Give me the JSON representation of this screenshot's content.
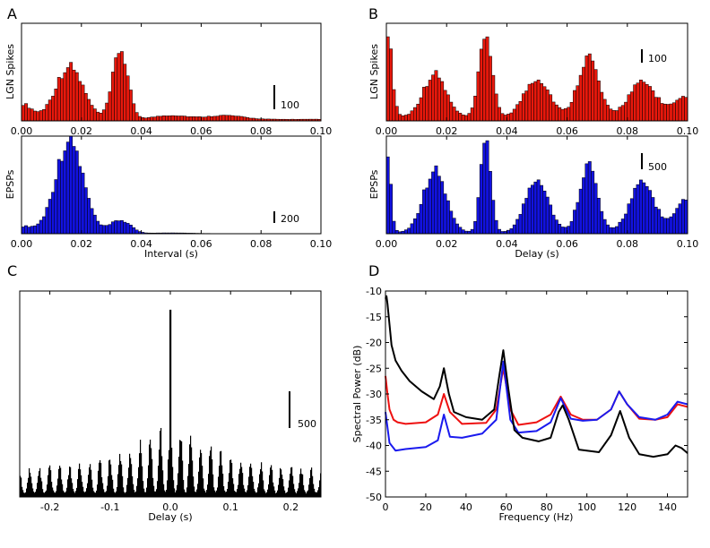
{
  "colors": {
    "red": "#e8180c",
    "blue": "#1212e0",
    "black": "#000000",
    "spectrum_red": "#ee1111",
    "spectrum_blue": "#1a1aee"
  },
  "panel_labels": [
    "A",
    "B",
    "C",
    "D"
  ],
  "chart_data": [
    {
      "id": "A1",
      "type": "bar",
      "panel": "A",
      "ylabel": "LGN Spikes",
      "xlabel": "",
      "xlim": [
        0,
        0.1
      ],
      "ylim": [
        0,
        500
      ],
      "xticks": [
        "0.00",
        "0.02",
        "0.04",
        "0.06",
        "0.08",
        "0.10"
      ],
      "scalebar": {
        "value": 100,
        "label": "100"
      },
      "peaks": [
        [
          0.0,
          8,
          80
        ],
        [
          0.016,
          11,
          270
        ],
        [
          0.033,
          6,
          360
        ],
        [
          0.05,
          14,
          20
        ],
        [
          0.068,
          14,
          20
        ]
      ],
      "baseline": 8
    },
    {
      "id": "A2",
      "type": "bar",
      "panel": "A",
      "ylabel": "EPSPs",
      "xlabel": "Interval (s)",
      "xlim": [
        0,
        0.1
      ],
      "ylim": [
        0,
        1100
      ],
      "xticks": [
        "0.00",
        "0.02",
        "0.04",
        "0.06",
        "0.08",
        "0.10"
      ],
      "scalebar": {
        "value": 200,
        "label": "200"
      },
      "peaks": [
        [
          0.0,
          10,
          80
        ],
        [
          0.016,
          11,
          1050
        ],
        [
          0.033,
          8,
          150
        ],
        [
          0.05,
          14,
          8
        ]
      ],
      "baseline": 2
    },
    {
      "id": "B1",
      "type": "bar",
      "panel": "B",
      "ylabel": "LGN Spikes",
      "xlabel": "",
      "xlim": [
        0,
        0.1
      ],
      "ylim": [
        0,
        500
      ],
      "xticks": [
        "0.00",
        "0.02",
        "0.04",
        "0.06",
        "0.08",
        "0.10"
      ],
      "scalebar": {
        "value": 100,
        "label": "100"
      },
      "peaks": [
        [
          0.0,
          4,
          480
        ],
        [
          0.016,
          9,
          220
        ],
        [
          0.033,
          5,
          430
        ],
        [
          0.05,
          10,
          200
        ],
        [
          0.067,
          8,
          310
        ],
        [
          0.085,
          11,
          175
        ],
        [
          0.1,
          10,
          100
        ]
      ],
      "baseline": 20
    },
    {
      "id": "B2",
      "type": "bar",
      "panel": "B",
      "ylabel": "EPSPs",
      "xlabel": "Delay (s)",
      "xlim": [
        0,
        0.1
      ],
      "ylim": [
        0,
        3000
      ],
      "xticks": [
        "0.00",
        "0.02",
        "0.04",
        "0.06",
        "0.08",
        "0.10"
      ],
      "scalebar": {
        "value": 500,
        "label": "500"
      },
      "peaks": [
        [
          0.0,
          3,
          2800
        ],
        [
          0.016,
          9,
          1900
        ],
        [
          0.033,
          4,
          3000
        ],
        [
          0.05,
          9,
          1700
        ],
        [
          0.067,
          7,
          2100
        ],
        [
          0.085,
          10,
          1500
        ],
        [
          0.1,
          9,
          1000
        ]
      ],
      "baseline": 40
    },
    {
      "id": "C",
      "type": "bar",
      "panel": "C",
      "xlabel": "Delay (s)",
      "ylabel": "",
      "xlim": [
        -0.25,
        0.25
      ],
      "ylim": [
        0,
        4400
      ],
      "xticks": [
        "-0.2",
        "-0.1",
        "0.0",
        "0.1",
        "0.2"
      ],
      "scalebar": {
        "value": 500,
        "label": "500"
      },
      "period": 0.0167,
      "center_peak": 4000,
      "side_peak": 1500,
      "min_peak": 450,
      "floor": 80
    },
    {
      "id": "D",
      "type": "line",
      "panel": "D",
      "xlabel": "Frequency (Hz)",
      "ylabel": "Spectral Power (dB)",
      "xlim": [
        0,
        150
      ],
      "ylim": [
        -50,
        -10
      ],
      "xticks": [
        "0",
        "20",
        "40",
        "60",
        "80",
        "100",
        "120",
        "140"
      ],
      "yticks": [
        "-10",
        "-15",
        "-20",
        "-25",
        "-30",
        "-35",
        "-40",
        "-45",
        "-50"
      ],
      "series": [
        {
          "name": "red",
          "x": [
            0,
            1,
            2,
            4,
            6,
            10,
            20,
            26,
            29,
            32,
            38,
            50,
            55,
            58.5,
            62,
            66,
            75,
            82,
            87,
            92,
            98,
            105,
            112,
            116,
            120,
            126,
            134,
            140,
            145,
            150
          ],
          "y": [
            -26.5,
            -30,
            -33,
            -35,
            -35.5,
            -35.8,
            -35.5,
            -34,
            -30,
            -33.5,
            -35.8,
            -35.6,
            -33,
            -25,
            -33,
            -36,
            -35.5,
            -34,
            -30.5,
            -34,
            -35,
            -35,
            -33,
            -29.5,
            -32,
            -34.8,
            -35,
            -34.5,
            -32,
            -32.5
          ]
        },
        {
          "name": "blue",
          "x": [
            0,
            2,
            5,
            10,
            20,
            26,
            29,
            32,
            38,
            48,
            55,
            58.5,
            62,
            66,
            75,
            82,
            87,
            92,
            98,
            105,
            112,
            116,
            120,
            126,
            134,
            140,
            145,
            150
          ],
          "y": [
            -33.5,
            -39.5,
            -41,
            -40.7,
            -40.3,
            -39,
            -34,
            -38.3,
            -38.5,
            -37.7,
            -35,
            -23.7,
            -35,
            -37.5,
            -37.2,
            -35.5,
            -30.8,
            -34.8,
            -35.2,
            -35,
            -33,
            -29.5,
            -32,
            -34.5,
            -35,
            -34,
            -31.5,
            -32
          ]
        },
        {
          "name": "black",
          "x": [
            0,
            0.5,
            1,
            2,
            3,
            5,
            8,
            12,
            18,
            24,
            27,
            29,
            31.5,
            34,
            40,
            48,
            54,
            56.5,
            58.5,
            61,
            64,
            68,
            76,
            82,
            86,
            88,
            91,
            96,
            106,
            112,
            116.5,
            121,
            126,
            133,
            140,
            144,
            147,
            150
          ],
          "y": [
            -11.5,
            -11,
            -12.5,
            -16.5,
            -20.5,
            -23.5,
            -25.5,
            -27.5,
            -29.5,
            -31,
            -28.5,
            -25,
            -30,
            -33.5,
            -34.5,
            -35,
            -33,
            -26.5,
            -21.5,
            -29,
            -37,
            -38.5,
            -39.2,
            -38.5,
            -33.5,
            -32.2,
            -35,
            -40.8,
            -41.3,
            -38,
            -33.3,
            -38.5,
            -41.7,
            -42.2,
            -41.7,
            -40,
            -40.5,
            -41.5
          ]
        }
      ]
    }
  ]
}
